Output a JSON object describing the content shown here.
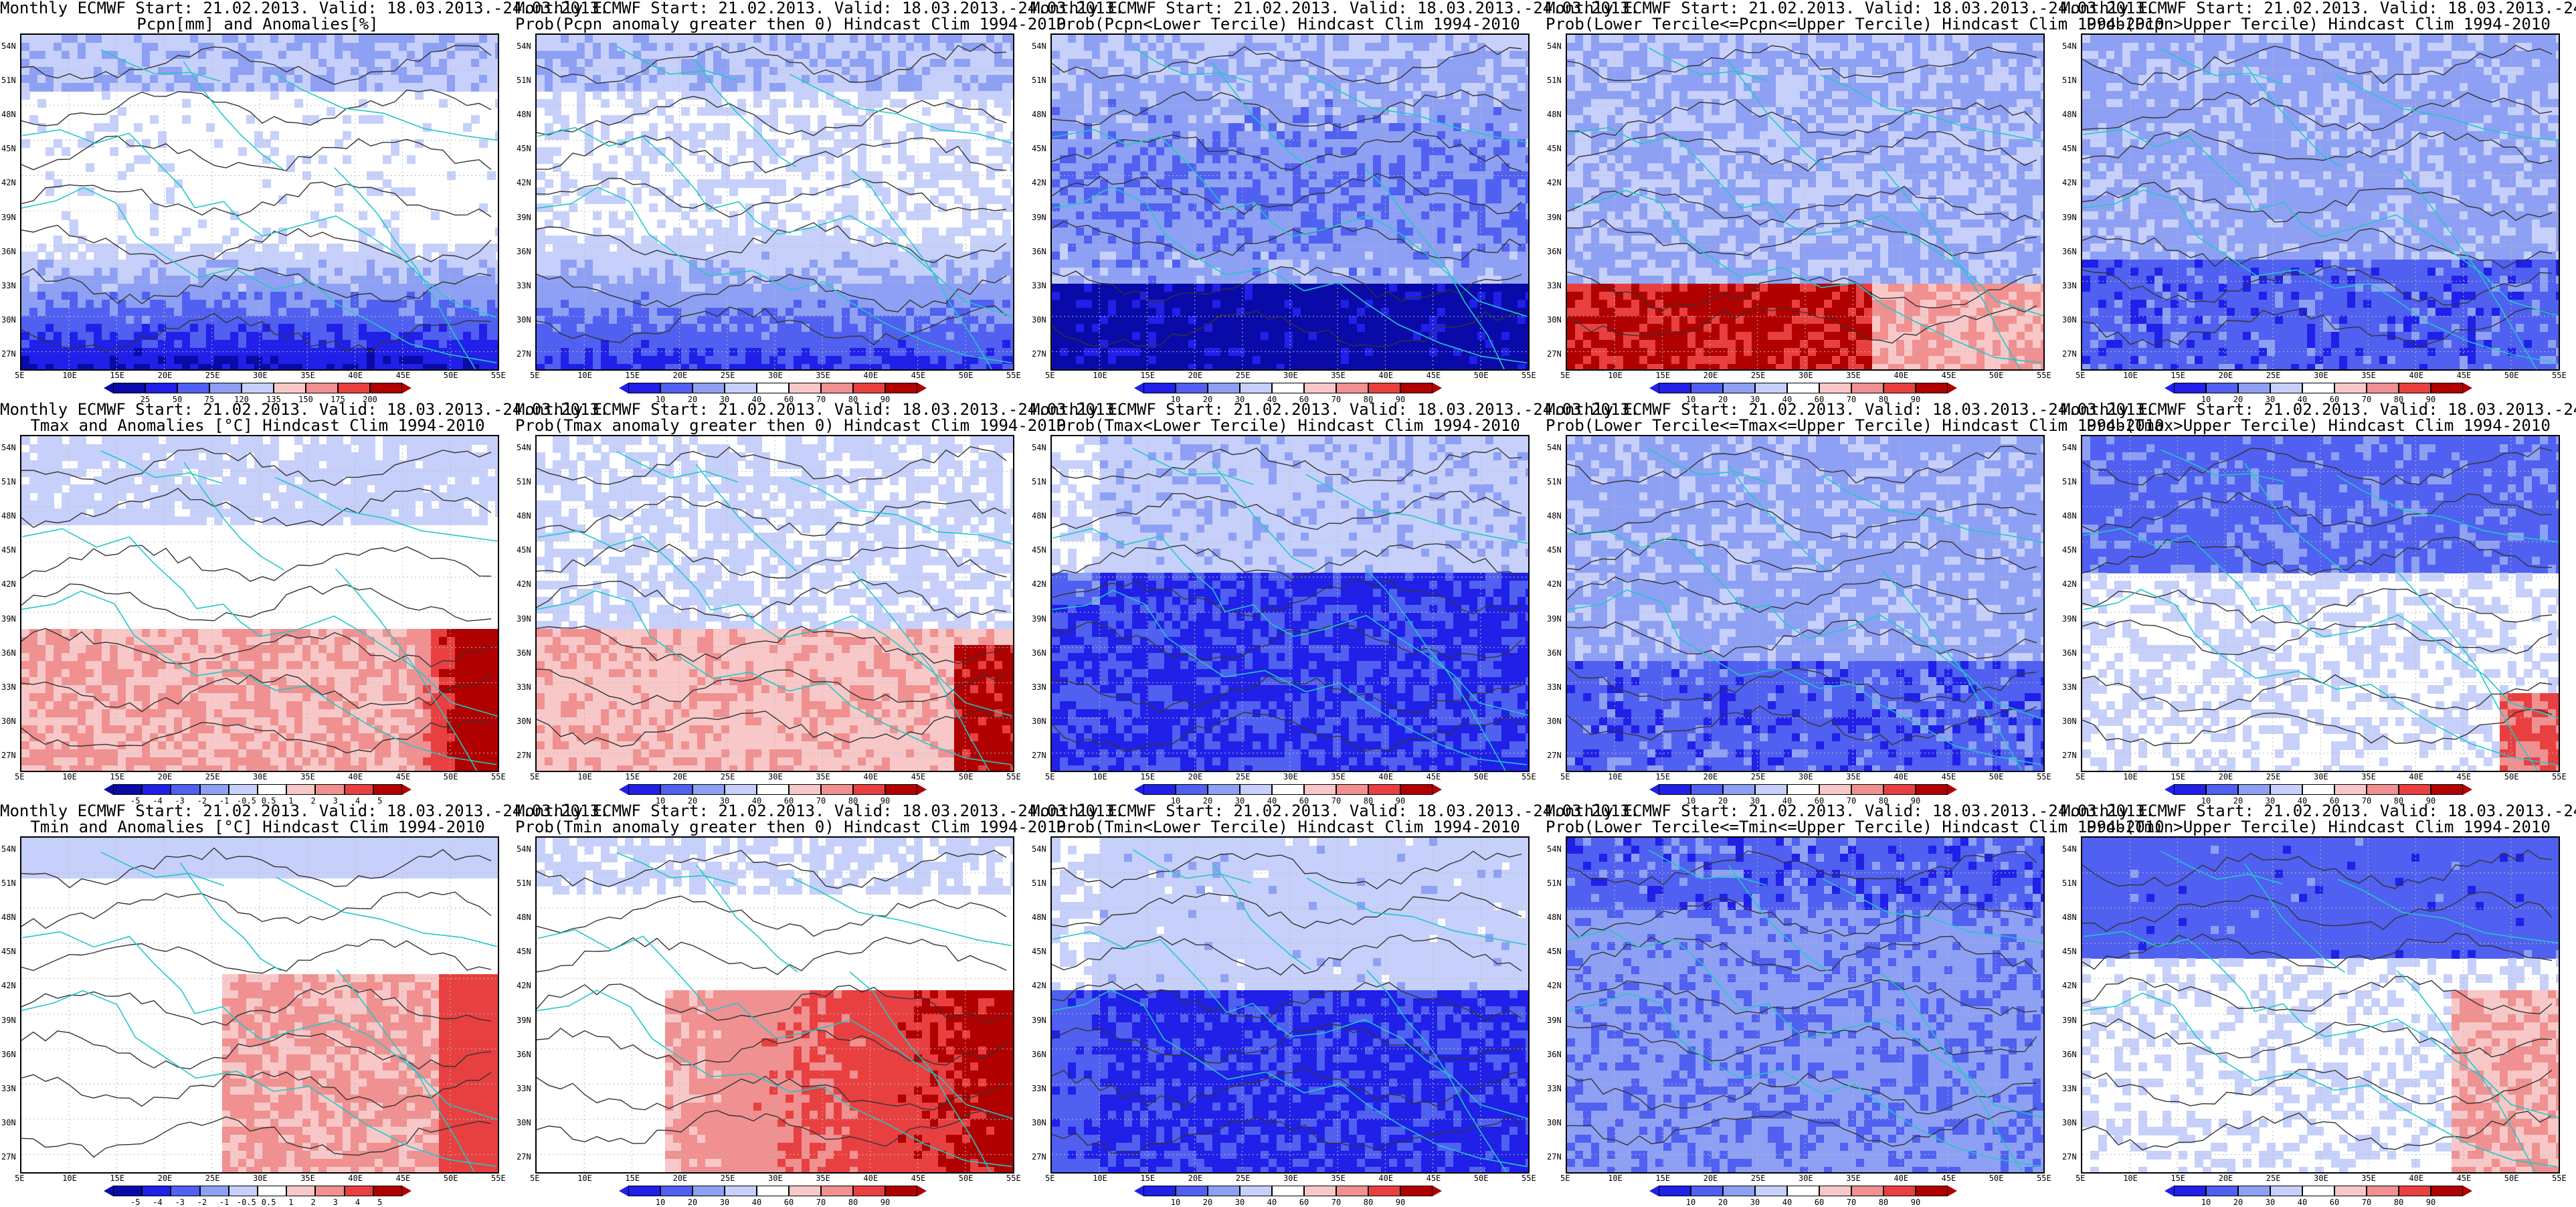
{
  "common": {
    "title_line1": "Monthly ECMWF Start: 21.02.2013. Valid: 18.03.2013.-24.03.2013.",
    "lat_labels": [
      "54N",
      "51N",
      "48N",
      "45N",
      "42N",
      "39N",
      "36N",
      "33N",
      "30N",
      "27N"
    ],
    "lon_labels": [
      "5E",
      "10E",
      "15E",
      "20E",
      "25E",
      "30E",
      "35E",
      "40E",
      "45E",
      "50E",
      "55E"
    ],
    "prob_ticks": [
      "10",
      "20",
      "30",
      "40",
      "60",
      "70",
      "80",
      "90"
    ]
  },
  "colors": {
    "darkblue": "#0a0aa8",
    "blue": "#2020e8",
    "midblue": "#5060f0",
    "lightblue": "#8ea0f4",
    "paleblue": "#c6d0fa",
    "white": "#ffffff",
    "palered": "#f8c8c8",
    "lightred": "#f09090",
    "red": "#e84040",
    "darkred": "#b00000",
    "coast": "#20c8c8",
    "contour": "#333333",
    "grid": "#bbbbbb"
  },
  "panels": [
    {
      "id": "p-pcpn-anom",
      "t2": "Pcpn[mm] and Anomalies[%]",
      "scheme": "pcpn",
      "ticks": [
        "25",
        "50",
        "75",
        "120",
        "135",
        "150",
        "175",
        "200"
      ]
    },
    {
      "id": "p-pcpn-prob0",
      "t2": "Prob(Pcpn anomaly greater then 0) Hindcast Clim 1994-2010",
      "scheme": "prob0"
    },
    {
      "id": "p-pcpn-lower",
      "t2": "Prob(Pcpn<Lower Tercile) Hindcast Clim 1994-2010",
      "scheme": "lowdeep"
    },
    {
      "id": "p-pcpn-middle",
      "t2": "Prob(Lower Tercile<=Pcpn<=Upper Tercile) Hindcast Clim 1994-2010",
      "scheme": "midred"
    },
    {
      "id": "p-pcpn-upper",
      "t2": "Prob(Pcpn>Upper Tercile) Hindcast Clim 1994-2010",
      "scheme": "bluemix"
    },
    {
      "id": "p-tmax-anom",
      "t2": "Tmax and Anomalies [°C] Hindcast Clim 1994-2010",
      "scheme": "tanom",
      "ticks": [
        "-5",
        "-4",
        "-3",
        "-2",
        "-1",
        "-0.5",
        "0.5",
        "1",
        "2",
        "3",
        "4",
        "5"
      ]
    },
    {
      "id": "p-tmax-prob0",
      "t2": "Prob(Tmax anomaly greater then 0) Hindcast Clim 1994-2010",
      "scheme": "redsouth"
    },
    {
      "id": "p-tmax-lower",
      "t2": "Prob(Tmax<Lower Tercile) Hindcast Clim 1994-2010",
      "scheme": "bluesouth"
    },
    {
      "id": "p-tmax-middle",
      "t2": "Prob(Lower Tercile<=Tmax<=Upper Tercile) Hindcast Clim 1994-2010",
      "scheme": "bluemix"
    },
    {
      "id": "p-tmax-upper",
      "t2": "Prob(Tmax>Upper Tercile) Hindcast Clim 1994-2010",
      "scheme": "bluenorth"
    },
    {
      "id": "p-tmin-anom",
      "t2": "Tmin and Anomalies [°C] Hindcast Clim 1994-2010",
      "scheme": "tanom2",
      "ticks": [
        "-5",
        "-4",
        "-3",
        "-2",
        "-1",
        "-0.5",
        "0.5",
        "1",
        "2",
        "3",
        "4",
        "5"
      ]
    },
    {
      "id": "p-tmin-prob0",
      "t2": "Prob(Tmin anomaly greater then 0) Hindcast Clim 1994-2010",
      "scheme": "redeast"
    },
    {
      "id": "p-tmin-lower",
      "t2": "Prob(Tmin<Lower Tercile) Hindcast Clim 1994-2010",
      "scheme": "bluesouth2"
    },
    {
      "id": "p-tmin-middle",
      "t2": "Prob(Lower Tercile<=Tmin<=Upper Tercile) Hindcast Clim 1994-2010",
      "scheme": "bluemix2"
    },
    {
      "id": "p-tmin-upper",
      "t2": "Prob(Tmin>Upper Tercile) Hindcast Clim 1994-2010",
      "scheme": "bluenorth2"
    }
  ]
}
